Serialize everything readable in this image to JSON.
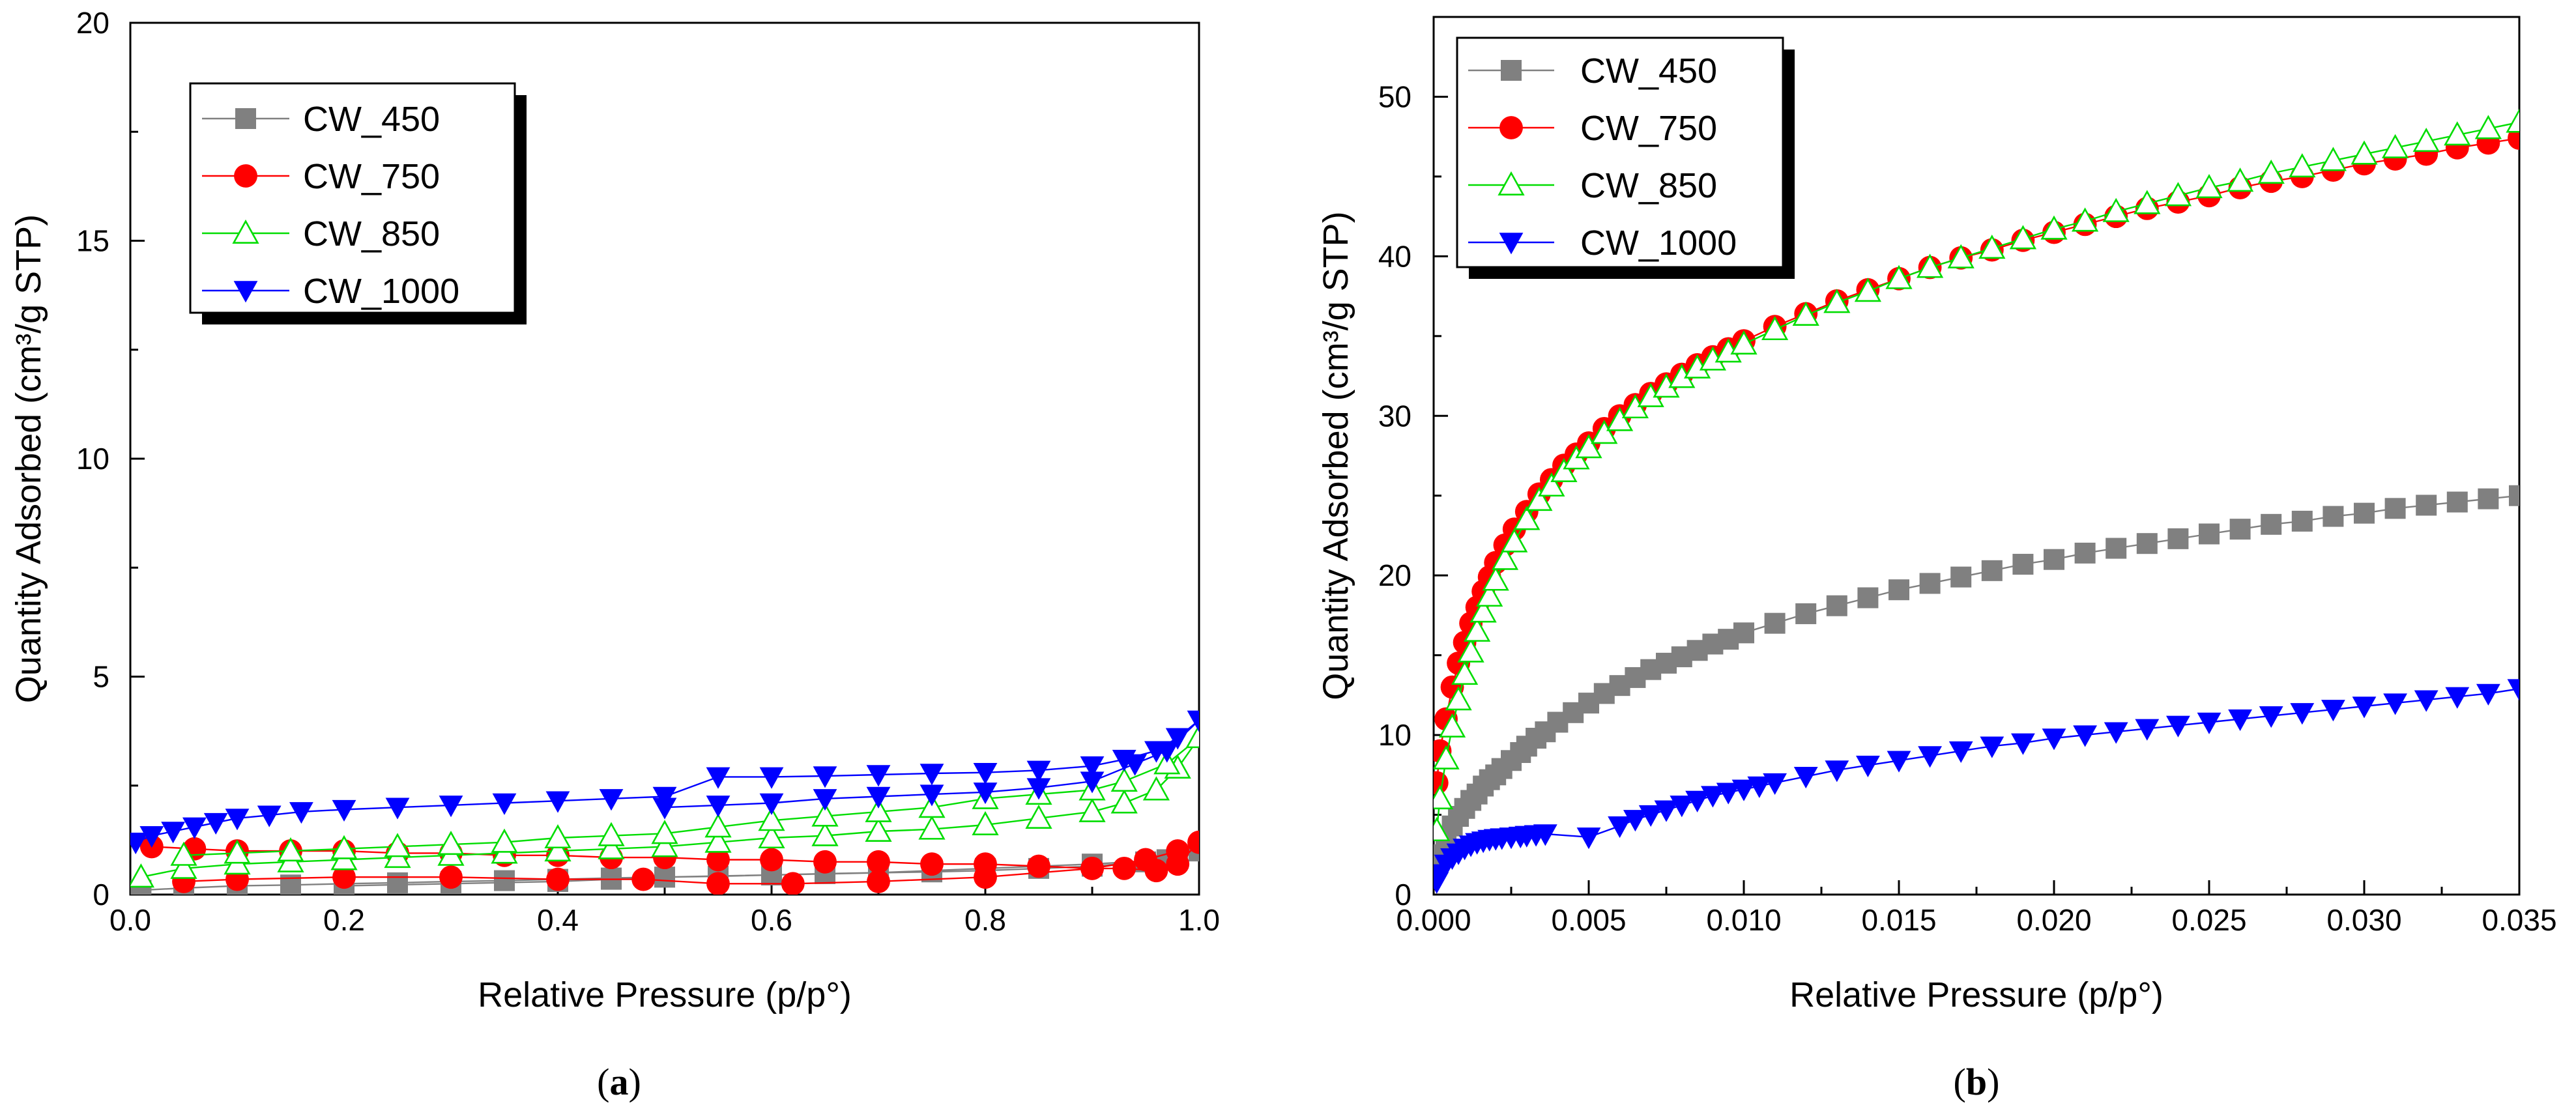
{
  "chart_data": [
    {
      "type": "line",
      "panel": "a",
      "caption": "(a)",
      "caption_parts": {
        "open": "(",
        "letter": "a",
        "close": ")"
      },
      "xlabel": "Relative Pressure (p/p°)",
      "ylabel": "Quantity Adsorbed (cm³/g STP)",
      "xlim": [
        0,
        1.0
      ],
      "ylim": [
        0,
        20
      ],
      "xticks": [
        0.0,
        0.2,
        0.4,
        0.6,
        0.8,
        1.0
      ],
      "xtick_labels": [
        "0.0",
        "0.2",
        "0.4",
        "0.6",
        "0.8",
        "1.0"
      ],
      "yticks": [
        0,
        5,
        10,
        15,
        20
      ],
      "ytick_labels": [
        "0",
        "5",
        "10",
        "15",
        "20"
      ],
      "legend": {
        "position": "top-left",
        "entries": [
          "CW_450",
          "CW_750",
          "CW_850",
          "CW_1000"
        ]
      },
      "series": [
        {
          "name": "CW_450",
          "color": "#808080",
          "marker": "square",
          "x": [
            0.01,
            0.05,
            0.1,
            0.15,
            0.2,
            0.25,
            0.3,
            0.35,
            0.4,
            0.45,
            0.5,
            0.55,
            0.6,
            0.65,
            0.7,
            0.75,
            0.8,
            0.85,
            0.9,
            0.95,
            0.98,
            1.0,
            0.97,
            0.9,
            0.8,
            0.7,
            0.6,
            0.5,
            0.45,
            0.4,
            0.3,
            0.2
          ],
          "y": [
            0.1,
            0.15,
            0.2,
            0.22,
            0.25,
            0.27,
            0.3,
            0.32,
            0.35,
            0.38,
            0.4,
            0.42,
            0.45,
            0.48,
            0.5,
            0.52,
            0.55,
            0.6,
            0.65,
            0.75,
            0.85,
            1.0,
            0.8,
            0.7,
            0.6,
            0.5,
            0.45,
            0.4,
            0.35,
            0.3,
            0.25,
            0.2
          ]
        },
        {
          "name": "CW_750",
          "color": "#ff0000",
          "marker": "circle",
          "x": [
            0.02,
            0.06,
            0.1,
            0.15,
            0.2,
            0.25,
            0.3,
            0.35,
            0.4,
            0.45,
            0.5,
            0.55,
            0.6,
            0.65,
            0.7,
            0.75,
            0.8,
            0.85,
            0.9,
            0.93,
            0.96,
            0.98,
            1.0,
            0.98,
            0.95,
            0.9,
            0.8,
            0.7,
            0.62,
            0.55,
            0.48,
            0.4,
            0.3,
            0.2,
            0.1,
            0.05
          ],
          "y": [
            1.1,
            1.05,
            1.0,
            1.0,
            1.0,
            0.95,
            0.95,
            0.9,
            0.9,
            0.85,
            0.85,
            0.8,
            0.8,
            0.75,
            0.75,
            0.7,
            0.7,
            0.65,
            0.6,
            0.6,
            0.55,
            0.7,
            1.2,
            1.0,
            0.8,
            0.6,
            0.4,
            0.3,
            0.25,
            0.25,
            0.35,
            0.35,
            0.4,
            0.4,
            0.35,
            0.3
          ]
        },
        {
          "name": "CW_850",
          "color": "#00dd00",
          "marker": "triangle-up",
          "x": [
            0.01,
            0.05,
            0.1,
            0.15,
            0.2,
            0.25,
            0.3,
            0.35,
            0.4,
            0.45,
            0.5,
            0.55,
            0.6,
            0.65,
            0.7,
            0.75,
            0.8,
            0.85,
            0.9,
            0.93,
            0.96,
            0.98,
            1.0,
            0.97,
            0.93,
            0.9,
            0.85,
            0.8,
            0.75,
            0.7,
            0.65,
            0.6,
            0.55,
            0.5,
            0.45,
            0.4,
            0.35,
            0.3,
            0.25,
            0.2,
            0.15,
            0.1,
            0.05
          ],
          "y": [
            0.4,
            0.6,
            0.7,
            0.75,
            0.8,
            0.85,
            0.9,
            0.95,
            1.0,
            1.05,
            1.1,
            1.2,
            1.3,
            1.35,
            1.45,
            1.5,
            1.6,
            1.75,
            1.9,
            2.1,
            2.4,
            2.9,
            3.6,
            3.0,
            2.6,
            2.4,
            2.3,
            2.2,
            2.0,
            1.9,
            1.8,
            1.7,
            1.55,
            1.4,
            1.35,
            1.3,
            1.2,
            1.15,
            1.1,
            1.05,
            1.0,
            0.95,
            0.9
          ]
        },
        {
          "name": "CW_1000",
          "color": "#0000ff",
          "marker": "triangle-down",
          "x": [
            0.005,
            0.02,
            0.04,
            0.06,
            0.08,
            0.1,
            0.13,
            0.16,
            0.2,
            0.25,
            0.3,
            0.35,
            0.4,
            0.45,
            0.5,
            0.55,
            0.6,
            0.65,
            0.7,
            0.75,
            0.8,
            0.85,
            0.9,
            0.93,
            0.96,
            0.98,
            1.0,
            0.97,
            0.94,
            0.9,
            0.85,
            0.8,
            0.75,
            0.7,
            0.65,
            0.6,
            0.55,
            0.5
          ],
          "y": [
            1.2,
            1.35,
            1.45,
            1.55,
            1.65,
            1.75,
            1.82,
            1.9,
            1.95,
            2.0,
            2.05,
            2.1,
            2.15,
            2.2,
            2.25,
            2.7,
            2.7,
            2.72,
            2.75,
            2.78,
            2.8,
            2.85,
            2.95,
            3.1,
            3.3,
            3.6,
            4.0,
            3.3,
            3.0,
            2.6,
            2.45,
            2.35,
            2.3,
            2.25,
            2.2,
            2.1,
            2.05,
            2.0
          ]
        }
      ]
    },
    {
      "type": "line",
      "panel": "b",
      "caption": "(b)",
      "caption_parts": {
        "open": "(",
        "letter": "b",
        "close": ")"
      },
      "xlabel": "Relative Pressure (p/p°)",
      "ylabel": "Quantity Adsorbed (cm³/g STP)",
      "xlim": [
        0,
        0.035
      ],
      "ylim": [
        0,
        55
      ],
      "xticks": [
        0.0,
        0.005,
        0.01,
        0.015,
        0.02,
        0.025,
        0.03,
        0.035
      ],
      "xtick_labels": [
        "0.000",
        "0.005",
        "0.010",
        "0.015",
        "0.020",
        "0.025",
        "0.030",
        "0.035"
      ],
      "yticks": [
        0,
        10,
        20,
        30,
        40,
        50
      ],
      "ytick_labels": [
        "0",
        "10",
        "20",
        "30",
        "40",
        "50"
      ],
      "legend": {
        "position": "top-left",
        "entries": [
          "CW_450",
          "CW_750",
          "CW_850",
          "CW_1000"
        ]
      },
      "series": [
        {
          "name": "CW_450",
          "color": "#808080",
          "marker": "square",
          "x": [
            0.0002,
            0.0004,
            0.0006,
            0.0008,
            0.001,
            0.0012,
            0.0014,
            0.0016,
            0.0018,
            0.002,
            0.0022,
            0.0025,
            0.0028,
            0.003,
            0.0033,
            0.0036,
            0.004,
            0.0045,
            0.005,
            0.0055,
            0.006,
            0.0065,
            0.007,
            0.0075,
            0.008,
            0.0085,
            0.009,
            0.0095,
            0.01,
            0.011,
            0.012,
            0.013,
            0.014,
            0.015,
            0.016,
            0.017,
            0.018,
            0.019,
            0.02,
            0.021,
            0.022,
            0.023,
            0.024,
            0.025,
            0.026,
            0.027,
            0.028,
            0.029,
            0.03,
            0.031,
            0.032,
            0.033,
            0.034,
            0.035
          ],
          "y": [
            2.5,
            3.5,
            4.3,
            4.9,
            5.4,
            5.9,
            6.3,
            6.8,
            7.2,
            7.5,
            7.9,
            8.4,
            8.9,
            9.3,
            9.8,
            10.2,
            10.8,
            11.4,
            12.0,
            12.6,
            13.1,
            13.6,
            14.1,
            14.5,
            14.9,
            15.3,
            15.7,
            16.0,
            16.4,
            17.0,
            17.6,
            18.1,
            18.6,
            19.1,
            19.5,
            19.9,
            20.3,
            20.7,
            21.0,
            21.4,
            21.7,
            22.0,
            22.3,
            22.6,
            22.9,
            23.2,
            23.4,
            23.7,
            23.9,
            24.2,
            24.4,
            24.6,
            24.8,
            25.0
          ]
        },
        {
          "name": "CW_750",
          "color": "#ff0000",
          "marker": "circle",
          "x": [
            0.0001,
            0.0002,
            0.0004,
            0.0006,
            0.0008,
            0.001,
            0.0012,
            0.0014,
            0.0016,
            0.0018,
            0.002,
            0.0023,
            0.0026,
            0.003,
            0.0034,
            0.0038,
            0.0042,
            0.0046,
            0.005,
            0.0055,
            0.006,
            0.0065,
            0.007,
            0.0075,
            0.008,
            0.0085,
            0.009,
            0.0095,
            0.01,
            0.011,
            0.012,
            0.013,
            0.014,
            0.015,
            0.016,
            0.017,
            0.018,
            0.019,
            0.02,
            0.021,
            0.022,
            0.023,
            0.024,
            0.025,
            0.026,
            0.027,
            0.028,
            0.029,
            0.03,
            0.031,
            0.032,
            0.033,
            0.034,
            0.035
          ],
          "y": [
            7.0,
            9.0,
            11.0,
            13.0,
            14.5,
            15.8,
            17.0,
            18.0,
            19.0,
            19.9,
            20.8,
            21.9,
            22.9,
            24.0,
            25.1,
            26.0,
            26.9,
            27.6,
            28.3,
            29.2,
            30.0,
            30.7,
            31.4,
            32.0,
            32.6,
            33.2,
            33.7,
            34.2,
            34.7,
            35.6,
            36.4,
            37.2,
            37.9,
            38.6,
            39.3,
            39.9,
            40.4,
            41.0,
            41.5,
            42.0,
            42.5,
            43.0,
            43.4,
            43.8,
            44.3,
            44.7,
            45.0,
            45.4,
            45.8,
            46.1,
            46.4,
            46.8,
            47.1,
            47.4
          ]
        },
        {
          "name": "CW_850",
          "color": "#00dd00",
          "marker": "triangle-up",
          "x": [
            0.0001,
            0.0002,
            0.0004,
            0.0006,
            0.0008,
            0.001,
            0.0012,
            0.0014,
            0.0016,
            0.0018,
            0.002,
            0.0023,
            0.0026,
            0.003,
            0.0034,
            0.0038,
            0.0042,
            0.0046,
            0.005,
            0.0055,
            0.006,
            0.0065,
            0.007,
            0.0075,
            0.008,
            0.0085,
            0.009,
            0.0095,
            0.01,
            0.011,
            0.012,
            0.013,
            0.014,
            0.015,
            0.016,
            0.017,
            0.018,
            0.019,
            0.02,
            0.021,
            0.022,
            0.023,
            0.024,
            0.025,
            0.026,
            0.027,
            0.028,
            0.029,
            0.03,
            0.031,
            0.032,
            0.033,
            0.034,
            0.035
          ],
          "y": [
            4.0,
            6.0,
            8.5,
            10.5,
            12.2,
            13.8,
            15.2,
            16.5,
            17.7,
            18.7,
            19.7,
            21.0,
            22.1,
            23.5,
            24.7,
            25.6,
            26.5,
            27.3,
            28.0,
            28.9,
            29.7,
            30.5,
            31.2,
            31.8,
            32.4,
            33.0,
            33.5,
            34.0,
            34.5,
            35.4,
            36.3,
            37.1,
            37.8,
            38.6,
            39.3,
            39.9,
            40.5,
            41.1,
            41.7,
            42.2,
            42.8,
            43.3,
            43.8,
            44.3,
            44.7,
            45.2,
            45.6,
            46.0,
            46.4,
            46.8,
            47.2,
            47.6,
            48.0,
            48.4
          ]
        },
        {
          "name": "CW_1000",
          "color": "#0000ff",
          "marker": "triangle-down",
          "x": [
            0.0001,
            0.0002,
            0.0004,
            0.0006,
            0.0008,
            0.001,
            0.0012,
            0.0014,
            0.0016,
            0.0018,
            0.002,
            0.0022,
            0.0025,
            0.0028,
            0.003,
            0.0033,
            0.0036,
            0.005,
            0.006,
            0.0065,
            0.007,
            0.0075,
            0.008,
            0.0085,
            0.009,
            0.0095,
            0.01,
            0.0105,
            0.011,
            0.012,
            0.013,
            0.014,
            0.015,
            0.016,
            0.017,
            0.018,
            0.019,
            0.02,
            0.021,
            0.022,
            0.023,
            0.024,
            0.025,
            0.026,
            0.027,
            0.028,
            0.029,
            0.03,
            0.031,
            0.032,
            0.033,
            0.034,
            0.035
          ],
          "y": [
            0.8,
            1.3,
            1.9,
            2.3,
            2.6,
            2.9,
            3.1,
            3.25,
            3.35,
            3.45,
            3.5,
            3.55,
            3.6,
            3.65,
            3.7,
            3.75,
            3.8,
            3.6,
            4.3,
            4.7,
            5.0,
            5.3,
            5.6,
            5.9,
            6.2,
            6.4,
            6.6,
            6.8,
            7.0,
            7.4,
            7.8,
            8.1,
            8.4,
            8.7,
            9.0,
            9.3,
            9.5,
            9.8,
            10.0,
            10.2,
            10.4,
            10.6,
            10.8,
            11.0,
            11.2,
            11.4,
            11.6,
            11.8,
            12.0,
            12.2,
            12.4,
            12.6,
            12.9
          ]
        }
      ]
    }
  ]
}
